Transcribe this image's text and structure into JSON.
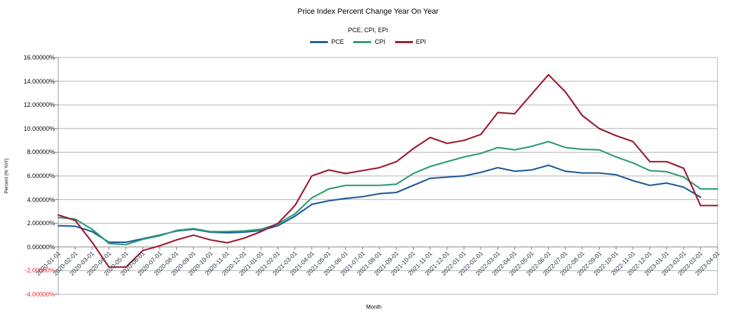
{
  "chart_data": {
    "type": "line",
    "title": "Price Index Percent Change Year On Year",
    "subtitle": "PCE, CPI, EPI",
    "xlabel": "Month",
    "ylabel": "Percent (% YoY)",
    "ylim": [
      -4,
      16
    ],
    "grid": true,
    "legend_position": "top",
    "plot_border_color": "#b3b3b3",
    "axis_line_color": "#9a9a9a",
    "tick_mark_color": "#777777",
    "ytick_color_positive": "#000000",
    "ytick_color_negative": "#e8202e",
    "yticks": [
      {
        "value": 16,
        "label": "16.00000%"
      },
      {
        "value": 14,
        "label": "14.00000%"
      },
      {
        "value": 12,
        "label": "12.00000%"
      },
      {
        "value": 10,
        "label": "10.00000%"
      },
      {
        "value": 8,
        "label": "8.00000%"
      },
      {
        "value": 6,
        "label": "6.00000%"
      },
      {
        "value": 4,
        "label": "4.00000%"
      },
      {
        "value": 2,
        "label": "2.00000%"
      },
      {
        "value": 0,
        "label": "0.00000%"
      },
      {
        "value": -2,
        "label": "-2.00000%"
      },
      {
        "value": -4,
        "label": "-4.00000%"
      }
    ],
    "categories": [
      "2020-01-01",
      "2020-02-01",
      "2020-03-01",
      "2020-04-01",
      "2020-05-01",
      "2020-06-01",
      "2020-07-01",
      "2020-08-01",
      "2020-09-01",
      "2020-10-01",
      "2020-11-01",
      "2020-12-01",
      "2021-01-01",
      "2021-02-01",
      "2021-03-01",
      "2021-04-01",
      "2021-05-01",
      "2021-06-01",
      "2021-07-01",
      "2021-08-01",
      "2021-09-01",
      "2021-10-01",
      "2021-11-01",
      "2021-12-01",
      "2022-01-01",
      "2022-02-01",
      "2022-03-01",
      "2022-04-01",
      "2022-05-01",
      "2022-06-01",
      "2022-07-01",
      "2022-08-01",
      "2022-09-01",
      "2022-10-01",
      "2022-11-01",
      "2022-12-01",
      "2023-01-01",
      "2023-02-01",
      "2023-03-01",
      "2023-04-01"
    ],
    "series": [
      {
        "name": "PCE",
        "color": "#1f5c99",
        "values": [
          1.8,
          1.75,
          1.3,
          0.4,
          0.4,
          0.7,
          1.0,
          1.35,
          1.5,
          1.25,
          1.2,
          1.25,
          1.4,
          1.8,
          2.6,
          3.6,
          3.9,
          4.1,
          4.25,
          4.5,
          4.6,
          5.2,
          5.8,
          5.9,
          6.0,
          6.3,
          6.7,
          6.4,
          6.5,
          6.9,
          6.4,
          6.25,
          6.25,
          6.1,
          5.6,
          5.2,
          5.4,
          5.05,
          4.2,
          null
        ]
      },
      {
        "name": "CPI",
        "color": "#2e9c76",
        "values": [
          2.5,
          2.35,
          1.5,
          0.3,
          0.2,
          0.65,
          0.95,
          1.4,
          1.55,
          1.3,
          1.3,
          1.35,
          1.5,
          1.95,
          2.8,
          4.15,
          4.9,
          5.2,
          5.2,
          5.2,
          5.3,
          6.2,
          6.8,
          7.2,
          7.6,
          7.9,
          8.4,
          8.2,
          8.5,
          8.9,
          8.4,
          8.25,
          8.2,
          7.6,
          7.1,
          6.45,
          6.35,
          5.9,
          4.9,
          4.9
        ]
      },
      {
        "name": "EPI",
        "color": "#9b1b31",
        "values": [
          2.7,
          2.25,
          0.4,
          -1.7,
          -1.7,
          -0.3,
          0.1,
          0.6,
          1.0,
          0.6,
          0.35,
          0.75,
          1.3,
          2.0,
          3.5,
          6.0,
          6.5,
          6.2,
          6.45,
          6.7,
          7.2,
          8.3,
          9.25,
          8.75,
          9.0,
          9.5,
          11.35,
          11.25,
          12.9,
          14.55,
          13.1,
          11.1,
          10.0,
          9.4,
          8.9,
          7.2,
          7.2,
          6.65,
          3.5,
          3.5
        ]
      }
    ]
  }
}
